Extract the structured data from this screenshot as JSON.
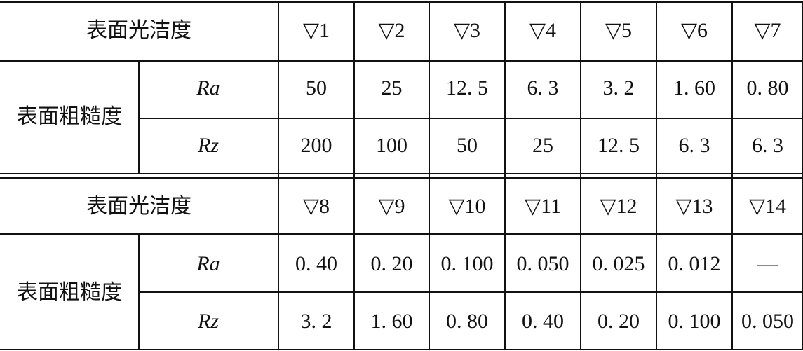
{
  "table": {
    "blocks": [
      {
        "header_label": "表面光洁度",
        "grades": [
          "▽1",
          "▽2",
          "▽3",
          "▽4",
          "▽5",
          "▽6",
          "▽7"
        ],
        "group_label": "表面粗糙度",
        "rows": [
          {
            "label": "Ra",
            "values": [
              "50",
              "25",
              "12. 5",
              "6. 3",
              "3. 2",
              "1. 60",
              "0. 80"
            ]
          },
          {
            "label": "Rz",
            "values": [
              "200",
              "100",
              "50",
              "25",
              "12. 5",
              "6. 3",
              "6. 3"
            ]
          }
        ]
      },
      {
        "header_label": "表面光洁度",
        "grades": [
          "▽8",
          "▽9",
          "▽10",
          "▽11",
          "▽12",
          "▽13",
          "▽14"
        ],
        "group_label": "表面粗糙度",
        "rows": [
          {
            "label": "Ra",
            "values": [
              "0. 40",
              "0. 20",
              "0. 100",
              "0. 050",
              "0. 025",
              "0. 012",
              "—"
            ]
          },
          {
            "label": "Rz",
            "values": [
              "3. 2",
              "1. 60",
              "0. 80",
              "0. 40",
              "0. 20",
              "0. 100",
              "0. 050"
            ]
          }
        ]
      }
    ]
  }
}
